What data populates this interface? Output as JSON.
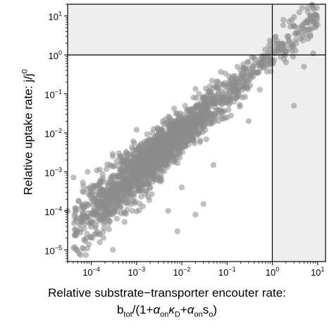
{
  "chart_data": {
    "type": "scatter",
    "xlabel_line1": "Relative substrate−transporter encouter rate:",
    "xlabel_line2": {
      "b": "b",
      "b_sub": "tot",
      "part1": "/(1+",
      "alpha1": "α",
      "alpha1_sub": "on",
      "kappa": "κ",
      "kappa_sub": "D",
      "plus": "+",
      "alpha2": "α",
      "alpha2_sub": "on",
      "s": "s",
      "s_sub": "o",
      "close": ")"
    },
    "ylabel": {
      "text": "Relative uptake rate: j/j",
      "sup": "0"
    },
    "x_scale": "log",
    "y_scale": "log",
    "xlim": [
      3e-05,
      15
    ],
    "ylim": [
      5e-06,
      20
    ],
    "x_ticks": [
      {
        "value": 0.0001,
        "base": "10",
        "exp": "−4"
      },
      {
        "value": 0.001,
        "base": "10",
        "exp": "−3"
      },
      {
        "value": 0.01,
        "base": "10",
        "exp": "−2"
      },
      {
        "value": 0.1,
        "base": "10",
        "exp": "−1"
      },
      {
        "value": 1,
        "base": "10",
        "exp": "0"
      },
      {
        "value": 10,
        "base": "10",
        "exp": "1"
      }
    ],
    "y_ticks": [
      {
        "value": 1e-05,
        "base": "10",
        "exp": "−5"
      },
      {
        "value": 0.0001,
        "base": "10",
        "exp": "−4"
      },
      {
        "value": 0.001,
        "base": "10",
        "exp": "−3"
      },
      {
        "value": 0.01,
        "base": "10",
        "exp": "−2"
      },
      {
        "value": 0.1,
        "base": "10",
        "exp": "−1"
      },
      {
        "value": 1,
        "base": "10",
        "exp": "0"
      },
      {
        "value": 10,
        "base": "10",
        "exp": "1"
      }
    ],
    "reference_lines": {
      "x": 1,
      "y": 1
    },
    "shaded_regions": [
      {
        "x": [
          3e-05,
          1
        ],
        "y": [
          1,
          20
        ]
      },
      {
        "x": [
          1,
          15
        ],
        "y": [
          5e-06,
          20
        ]
      }
    ],
    "trend": {
      "description": "dense cloud along y ≈ x, clipped near y=1 for x>1",
      "x_range": [
        4e-05,
        10
      ],
      "spread_log10": 0.25
    },
    "outlier_points": [
      {
        "x": 3e-05,
        "y": 0.0001
      },
      {
        "x": 5e-05,
        "y": 3e-05
      },
      {
        "x": 0.0001,
        "y": 0.0002
      },
      {
        "x": 0.00015,
        "y": 0.0003
      },
      {
        "x": 0.0003,
        "y": 1e-05
      },
      {
        "x": 0.0004,
        "y": 0.0003
      },
      {
        "x": 0.0005,
        "y": 0.001
      },
      {
        "x": 0.001,
        "y": 0.012
      },
      {
        "x": 0.0015,
        "y": 0.005
      },
      {
        "x": 0.002,
        "y": 0.0004
      },
      {
        "x": 0.005,
        "y": 0.0001
      },
      {
        "x": 0.008,
        "y": 3e-05
      },
      {
        "x": 0.01,
        "y": 0.0004
      },
      {
        "x": 0.02,
        "y": 8e-05
      },
      {
        "x": 0.03,
        "y": 0.00015
      },
      {
        "x": 0.0003,
        "y": 0.0025
      },
      {
        "x": 0.0008,
        "y": 0.0001
      },
      {
        "x": 0.05,
        "y": 0.0015
      },
      {
        "x": 0.3,
        "y": 0.02
      },
      {
        "x": 3,
        "y": 0.05
      },
      {
        "x": 5,
        "y": 0.5
      },
      {
        "x": 8,
        "y": 1.1
      },
      {
        "x": 10,
        "y": 6
      },
      {
        "x": 7,
        "y": 3
      }
    ],
    "colors": {
      "points": "#8c8c8c",
      "shade": "#eeeeee",
      "axes": "#000000"
    },
    "legend": "none",
    "grid": false
  }
}
